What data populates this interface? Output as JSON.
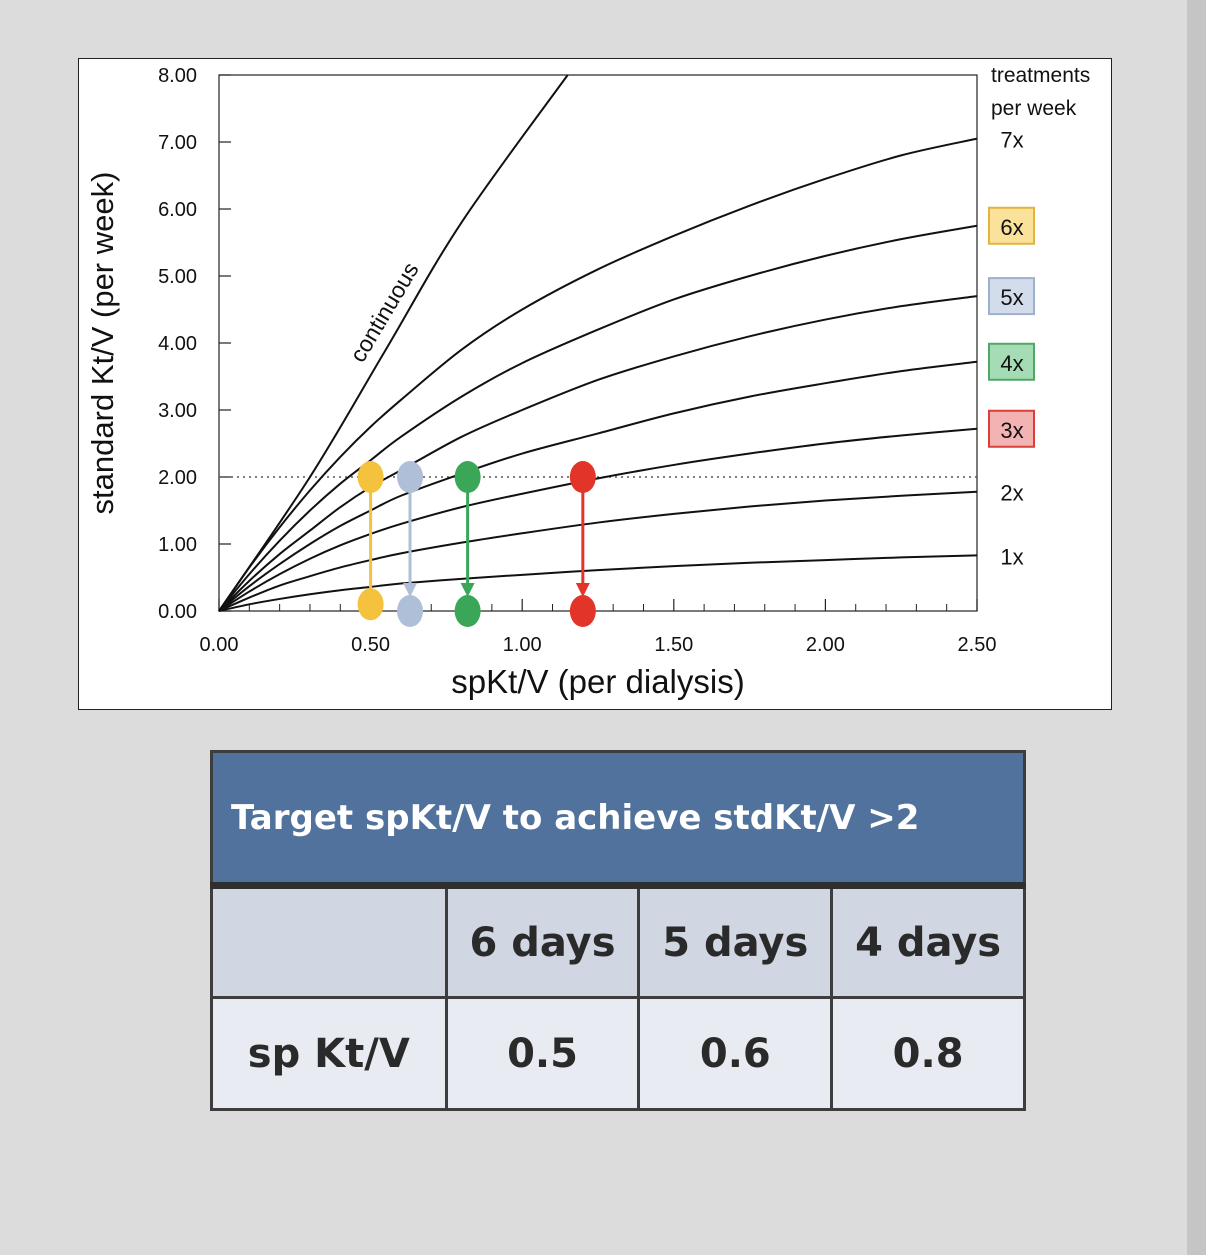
{
  "chart_data": {
    "type": "line",
    "xlabel": "spKt/V (per dialysis)",
    "ylabel": "standard Kt/V (per week)",
    "xlim": [
      0,
      2.5
    ],
    "ylim": [
      0,
      8
    ],
    "x_ticks": [
      "0.00",
      "0.50",
      "1.00",
      "1.50",
      "2.00",
      "2.50"
    ],
    "y_ticks": [
      "0.00",
      "1.00",
      "2.00",
      "3.00",
      "4.00",
      "5.00",
      "6.00",
      "7.00",
      "8.00"
    ],
    "legend_title": [
      "treatments",
      "per week"
    ],
    "reference_line": {
      "y": 2.0,
      "style": "dotted"
    },
    "continuous": {
      "label": "continuous",
      "x": [
        0,
        0.3,
        0.55,
        0.8,
        1.15
      ],
      "y": [
        0,
        2.0,
        3.9,
        5.8,
        8.0
      ]
    },
    "series": [
      {
        "name": "7x",
        "x": [
          0,
          0.1,
          0.2,
          0.3,
          0.4,
          0.5,
          0.6,
          0.8,
          1.0,
          1.25,
          1.5,
          1.75,
          2.0,
          2.25,
          2.5
        ],
        "y": [
          0,
          0.65,
          1.25,
          1.8,
          2.3,
          2.75,
          3.15,
          3.9,
          4.5,
          5.1,
          5.6,
          6.05,
          6.45,
          6.8,
          7.05
        ]
      },
      {
        "name": "6x",
        "x": [
          0,
          0.1,
          0.2,
          0.3,
          0.4,
          0.5,
          0.6,
          0.8,
          1.0,
          1.25,
          1.5,
          1.75,
          2.0,
          2.25,
          2.5
        ],
        "y": [
          0,
          0.55,
          1.05,
          1.5,
          1.9,
          2.25,
          2.6,
          3.2,
          3.7,
          4.2,
          4.65,
          5.0,
          5.3,
          5.55,
          5.75
        ]
      },
      {
        "name": "5x",
        "x": [
          0,
          0.1,
          0.2,
          0.3,
          0.4,
          0.5,
          0.6,
          0.8,
          1.0,
          1.25,
          1.5,
          1.75,
          2.0,
          2.25,
          2.5
        ],
        "y": [
          0,
          0.45,
          0.85,
          1.2,
          1.55,
          1.85,
          2.1,
          2.6,
          3.0,
          3.45,
          3.8,
          4.1,
          4.35,
          4.55,
          4.7
        ]
      },
      {
        "name": "4x",
        "x": [
          0,
          0.1,
          0.2,
          0.3,
          0.4,
          0.5,
          0.6,
          0.8,
          1.0,
          1.25,
          1.5,
          1.75,
          2.0,
          2.25,
          2.5
        ],
        "y": [
          0,
          0.37,
          0.7,
          1.0,
          1.27,
          1.5,
          1.72,
          2.05,
          2.35,
          2.65,
          2.95,
          3.2,
          3.4,
          3.58,
          3.72
        ]
      },
      {
        "name": "3x",
        "x": [
          0,
          0.1,
          0.2,
          0.3,
          0.4,
          0.5,
          0.6,
          0.8,
          1.0,
          1.25,
          1.5,
          1.75,
          2.0,
          2.25,
          2.5
        ],
        "y": [
          0,
          0.29,
          0.55,
          0.78,
          0.98,
          1.15,
          1.3,
          1.55,
          1.75,
          1.98,
          2.18,
          2.35,
          2.5,
          2.62,
          2.72
        ]
      },
      {
        "name": "2x",
        "x": [
          0,
          0.1,
          0.2,
          0.3,
          0.4,
          0.5,
          0.6,
          0.8,
          1.0,
          1.25,
          1.5,
          1.75,
          2.0,
          2.25,
          2.5
        ],
        "y": [
          0,
          0.2,
          0.38,
          0.52,
          0.65,
          0.76,
          0.86,
          1.02,
          1.16,
          1.32,
          1.45,
          1.56,
          1.65,
          1.72,
          1.78
        ]
      },
      {
        "name": "1x",
        "x": [
          0,
          0.1,
          0.2,
          0.3,
          0.4,
          0.5,
          0.6,
          0.8,
          1.0,
          1.25,
          1.5,
          1.75,
          2.0,
          2.25,
          2.5
        ],
        "y": [
          0,
          0.1,
          0.18,
          0.25,
          0.31,
          0.36,
          0.41,
          0.48,
          0.54,
          0.61,
          0.67,
          0.72,
          0.76,
          0.8,
          0.83
        ]
      }
    ],
    "legend_boxes": [
      {
        "name": "6x",
        "fill": "#fbe29a",
        "stroke": "#e2b43c"
      },
      {
        "name": "5x",
        "fill": "#d3dcea",
        "stroke": "#9db0cc"
      },
      {
        "name": "4x",
        "fill": "#a6dcb5",
        "stroke": "#4fa866"
      },
      {
        "name": "3x",
        "fill": "#f4b3b3",
        "stroke": "#d9403a"
      }
    ],
    "markers": [
      {
        "x": 0.5,
        "y_from": 2.0,
        "y_to": 0.1,
        "color": "#f5c23e",
        "arrow": false
      },
      {
        "x": 0.63,
        "y_from": 2.0,
        "y_to": 0.0,
        "color": "#aebfd7",
        "arrow": true
      },
      {
        "x": 0.82,
        "y_from": 2.0,
        "y_to": 0.0,
        "color": "#3aa657",
        "arrow": true
      },
      {
        "x": 1.2,
        "y_from": 2.0,
        "y_to": 0.0,
        "color": "#e3342a",
        "arrow": true
      }
    ]
  },
  "table": {
    "title": "Target spKt/V to achieve stdKt/V >2",
    "header": [
      "",
      "6 days",
      "5 days",
      "4 days"
    ],
    "row_label": "sp Kt/V",
    "values": [
      "0.5",
      "0.6",
      "0.8"
    ]
  }
}
